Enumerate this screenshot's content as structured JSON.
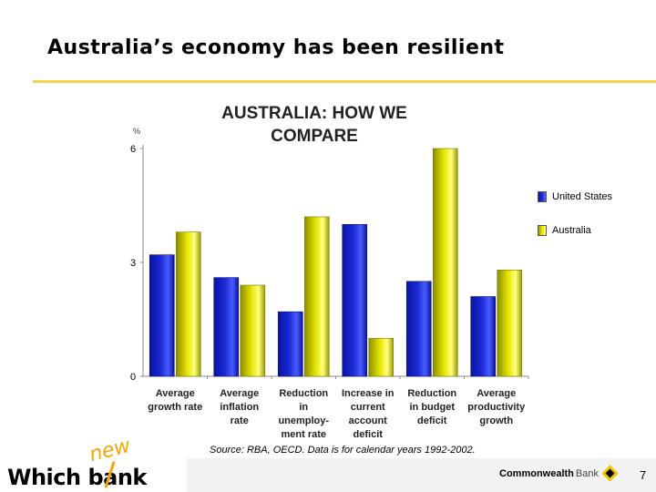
{
  "slide": {
    "title": "Australia’s economy has been resilient",
    "source": "Source: RBA, OECD. Data is for calendar years 1992-2002.",
    "page_number": "7"
  },
  "footer": {
    "brand_new": "new",
    "brand_main": "Which bank",
    "cba_bold": "Commonwealth",
    "cba_light": "Bank"
  },
  "colors": {
    "us": "#1a2ad6",
    "australia": "#e6e600",
    "title_rule": "#f5d24a",
    "brand_accent": "#f0a800"
  },
  "chart_data": {
    "type": "bar",
    "title": "AUSTRALIA: HOW WE COMPARE",
    "title_lines": [
      "AUSTRALIA: HOW WE",
      "COMPARE"
    ],
    "ylabel": "%",
    "ylim": [
      0,
      6
    ],
    "yticks": [
      "0",
      "3",
      "6"
    ],
    "grid": false,
    "legend_position": "right",
    "categories": [
      [
        "Average",
        "growth rate"
      ],
      [
        "Average",
        "inflation",
        "rate"
      ],
      [
        "Reduction",
        "in",
        "unemploy-",
        "ment rate"
      ],
      [
        "Increase in",
        "current",
        "account",
        "deficit"
      ],
      [
        "Reduction",
        "in budget",
        "deficit"
      ],
      [
        "Average",
        "productivity",
        "growth"
      ]
    ],
    "series": [
      {
        "name": "United States",
        "values": [
          3.2,
          2.6,
          1.7,
          4.0,
          2.5,
          2.1
        ]
      },
      {
        "name": "Australia",
        "values": [
          3.8,
          2.4,
          4.2,
          1.0,
          6.0,
          2.8
        ]
      }
    ]
  }
}
